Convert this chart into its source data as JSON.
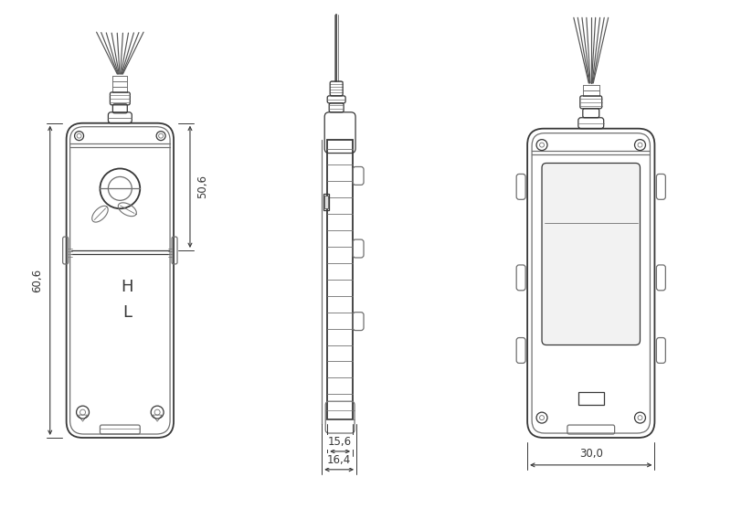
{
  "bg_color": "#ffffff",
  "line_color": "#383838",
  "dim_color": "#383838",
  "light_line": "#707070",
  "figsize": [
    8.0,
    5.57
  ],
  "dpi": 100,
  "dimensions": {
    "dim_606": "60,6",
    "dim_506": "50,6",
    "dim_156": "15,6",
    "dim_164": "16,4",
    "dim_300": "30,0"
  }
}
